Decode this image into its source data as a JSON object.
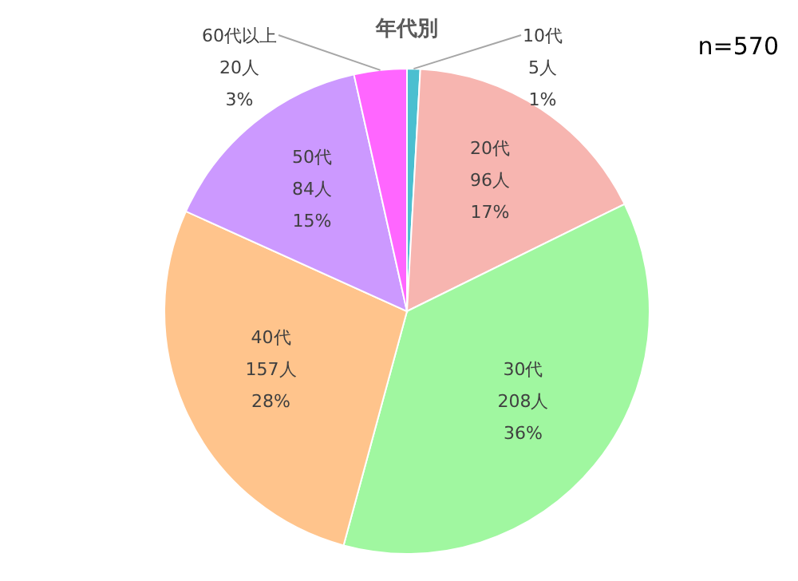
{
  "chart_data": {
    "type": "pie",
    "title": "年代別",
    "categories": [
      "10代",
      "20代",
      "30代",
      "40代",
      "50代",
      "60代以上"
    ],
    "values": [
      5,
      96,
      208,
      157,
      84,
      20
    ],
    "value_labels": [
      "5人\n1%",
      "96人\n17%",
      "208人\n36%",
      "157人\n28%",
      "84人\n15%",
      "20人\n3%"
    ],
    "colors": [
      "#4bbfd0",
      "#f7b5b0",
      "#a0f7a0",
      "#ffc48c",
      "#cc99ff",
      "#ff66ff"
    ],
    "annotations": [
      "n=570"
    ]
  }
}
